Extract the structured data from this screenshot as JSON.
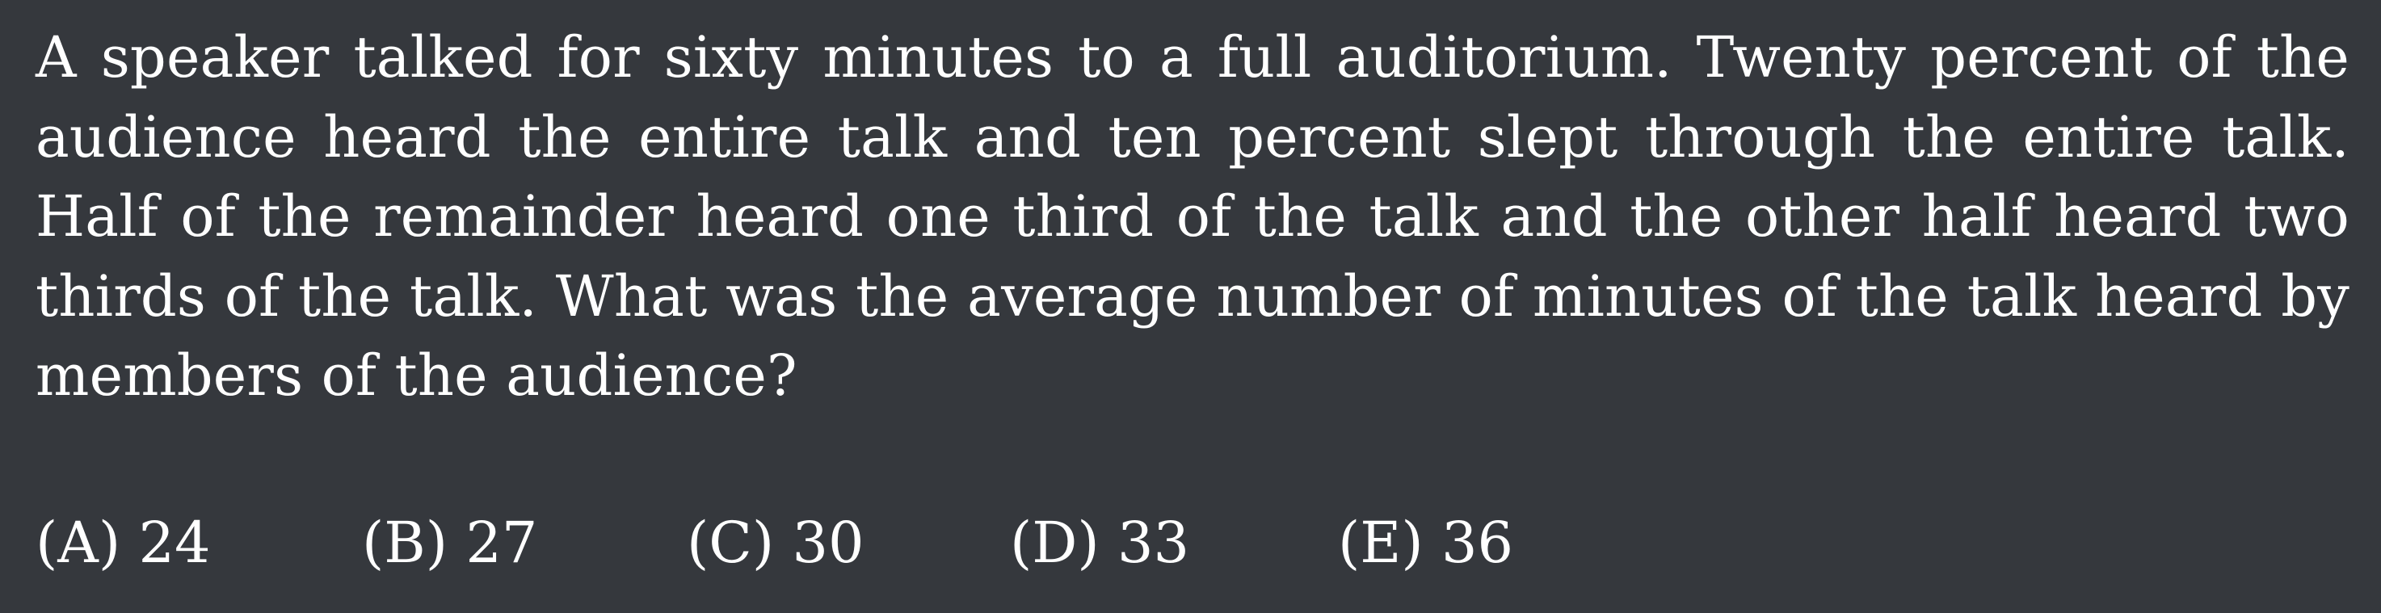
{
  "problem": {
    "text": "A speaker talked for sixty minutes to a full auditorium. Twenty percent of the audience heard the entire talk and ten percent slept through the entire talk. Half of the remainder heard one third of the talk and the other half heard two thirds of the talk. What was the average number of minutes of the talk heard by members of the audience?"
  },
  "choices": [
    {
      "label": "(A)",
      "value": "24"
    },
    {
      "label": "(B)",
      "value": "27"
    },
    {
      "label": "(C)",
      "value": "30"
    },
    {
      "label": "(D)",
      "value": "33"
    },
    {
      "label": "(E)",
      "value": "36"
    }
  ],
  "colors": {
    "background": "#35383d",
    "text": "#ffffff"
  }
}
